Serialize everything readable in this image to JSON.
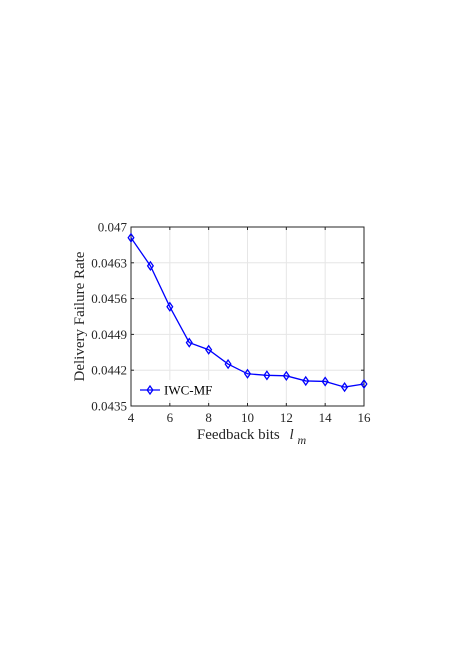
{
  "chart_data": {
    "type": "line",
    "title": "",
    "xlabel": "Feedback bits",
    "xlabel_var": "l",
    "xlabel_sub": "m",
    "ylabel": "Delivery Failure Rate",
    "xlim": [
      4,
      16
    ],
    "ylim": [
      0.0435,
      0.047
    ],
    "xticks": [
      4,
      6,
      8,
      10,
      12,
      14,
      16
    ],
    "yticks": [
      0.0435,
      0.0442,
      0.0449,
      0.0456,
      0.0463,
      0.047
    ],
    "ytick_labels": [
      "0.0435",
      "0.0442",
      "0.0449",
      "0.0456",
      "0.0463",
      "0.047"
    ],
    "grid": true,
    "legend_position": "bottom-left",
    "series": [
      {
        "name": "IWC-MF",
        "color": "#0000ff",
        "marker": "diamond",
        "x": [
          4,
          5,
          6,
          7,
          8,
          9,
          10,
          11,
          12,
          13,
          14,
          15,
          16
        ],
        "y": [
          0.04679,
          0.04624,
          0.04544,
          0.04474,
          0.0446,
          0.04432,
          0.04413,
          0.0441,
          0.04409,
          0.04399,
          0.04398,
          0.04387,
          0.04393
        ]
      }
    ]
  }
}
